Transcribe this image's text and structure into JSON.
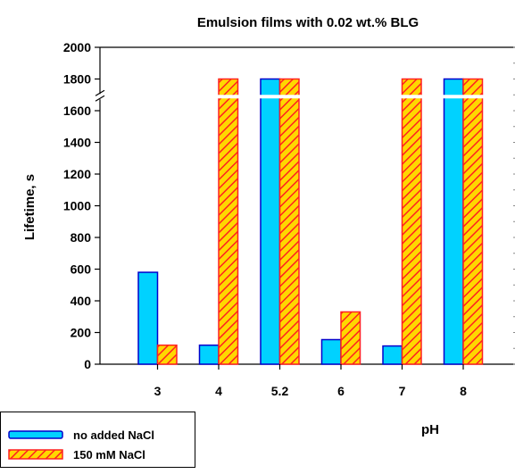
{
  "chart_data": {
    "type": "bar",
    "title": "Emulsion films with 0.02 wt.% BLG",
    "xlabel": "pH",
    "ylabel": "Lifetime, s",
    "categories": [
      "3",
      "4",
      "5.2",
      "6",
      "7",
      "8"
    ],
    "series": [
      {
        "name": "no added NaCl",
        "values": [
          580,
          120,
          1800,
          155,
          115,
          1800
        ]
      },
      {
        "name": "150 mM NaCl",
        "values": [
          120,
          1800,
          1800,
          330,
          1800,
          1800
        ]
      }
    ],
    "ylim": [
      0,
      2000
    ],
    "yticks": [
      "0",
      "200",
      "400",
      "600",
      "800",
      "1000",
      "1200",
      "1400",
      "1600",
      "1800",
      "2000"
    ],
    "axis_break": "between 1600 and 1800",
    "grid": false,
    "legend_position": "bottom-left",
    "colors": {
      "series1_fill": "#00d2ff",
      "series1_stroke": "#0000cc",
      "series2_fill": "#ffd700",
      "series2_hatch": "#ff2020"
    }
  }
}
